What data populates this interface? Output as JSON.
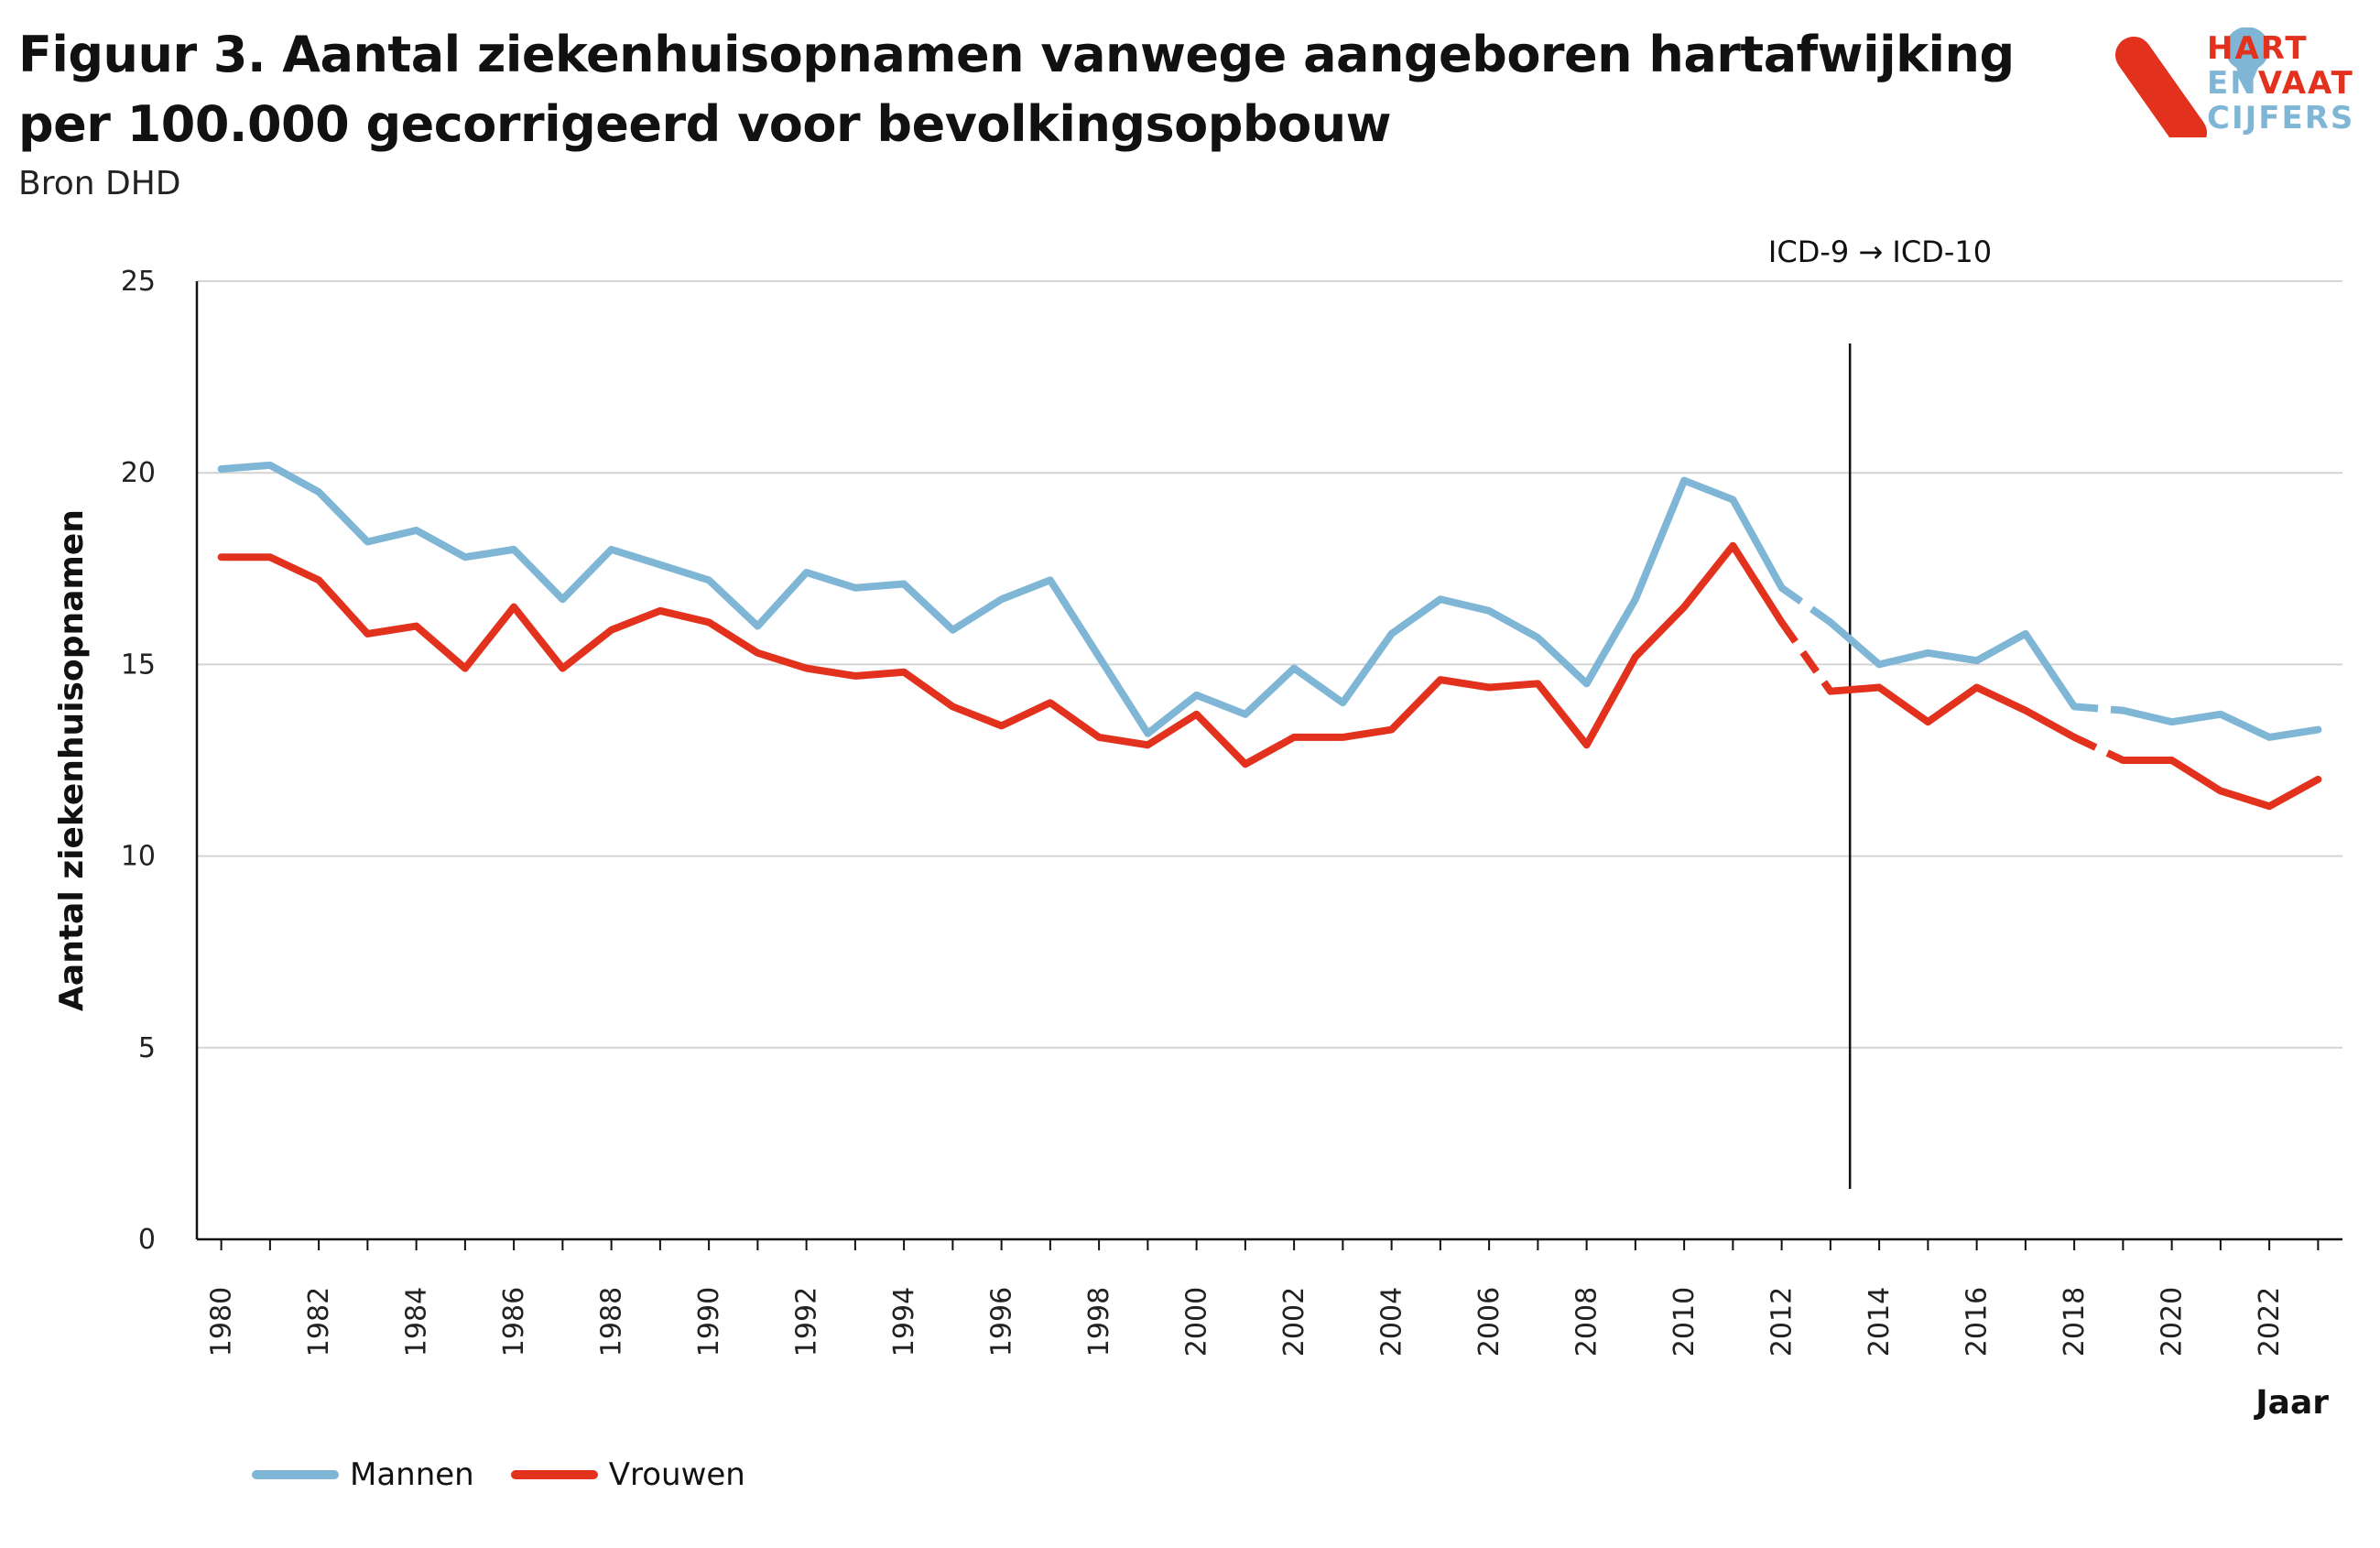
{
  "title_line1": "Figuur 3. Aantal ziekenhuisopnamen vanwege aangeboren hartafwijking",
  "title_line2": "per 100.000 gecorrigeerd voor bevolkingsopbouw",
  "source": "Bron DHD",
  "logo": {
    "line1a": "HART",
    "line2a": "EN",
    "line2b": "VAAT",
    "line3a": "CIJFERS",
    "red": "#e2311d",
    "blue": "#7fb6d5"
  },
  "chart_data": {
    "type": "line",
    "ylabel": "Aantal ziekenhuisopnamen",
    "xlabel": "Jaar",
    "ylim": [
      0,
      25
    ],
    "yticks": [
      0,
      5,
      10,
      15,
      20,
      25
    ],
    "xlim": [
      1980,
      2023
    ],
    "xticks": [
      1980,
      1982,
      1984,
      1986,
      1988,
      1990,
      1992,
      1994,
      1996,
      1998,
      2000,
      2002,
      2004,
      2006,
      2008,
      2010,
      2012,
      2014,
      2016,
      2018,
      2020,
      2022
    ],
    "grid": "horizontal",
    "legend_position": "bottom-left",
    "annotation": {
      "text": "ICD-9 → ICD-10",
      "x": 2013.4
    },
    "x": [
      1980,
      1981,
      1982,
      1983,
      1984,
      1985,
      1986,
      1987,
      1988,
      1989,
      1990,
      1991,
      1992,
      1993,
      1994,
      1995,
      1996,
      1997,
      1998,
      1999,
      2000,
      2001,
      2002,
      2003,
      2004,
      2005,
      2006,
      2007,
      2008,
      2009,
      2010,
      2011,
      2012,
      2013,
      2014,
      2015,
      2016,
      2017,
      2018,
      2019,
      2020,
      2021,
      2022,
      2023
    ],
    "series": [
      {
        "name": "Mannen",
        "color": "#7fb6d5",
        "values": [
          20.1,
          20.2,
          19.5,
          18.2,
          18.5,
          17.8,
          18.0,
          16.7,
          18.0,
          17.6,
          17.2,
          16.0,
          17.4,
          17.0,
          17.1,
          15.9,
          16.7,
          17.2,
          15.2,
          13.2,
          14.2,
          13.7,
          14.9,
          14.0,
          15.8,
          16.7,
          16.4,
          15.7,
          14.5,
          16.7,
          19.8,
          19.3,
          17.0,
          16.1,
          15.0,
          15.3,
          15.1,
          15.8,
          13.9,
          13.8,
          13.5,
          13.7,
          13.1,
          13.3
        ],
        "dashed_segments": [
          [
            2012,
            2013
          ],
          [
            2018,
            2019
          ]
        ]
      },
      {
        "name": "Vrouwen",
        "color": "#e2311d",
        "values": [
          17.8,
          17.8,
          17.2,
          15.8,
          16.0,
          14.9,
          16.5,
          14.9,
          15.9,
          16.4,
          16.1,
          15.3,
          14.9,
          14.7,
          14.8,
          13.9,
          13.4,
          14.0,
          13.1,
          12.9,
          13.7,
          12.4,
          13.1,
          13.1,
          13.3,
          14.6,
          14.4,
          14.5,
          12.9,
          15.2,
          16.5,
          18.1,
          16.1,
          14.3,
          14.4,
          13.5,
          14.4,
          13.8,
          13.1,
          12.5,
          12.5,
          11.7,
          11.3,
          12.0
        ],
        "dashed_segments": [
          [
            2012,
            2013
          ],
          [
            2018,
            2019
          ]
        ]
      }
    ]
  }
}
